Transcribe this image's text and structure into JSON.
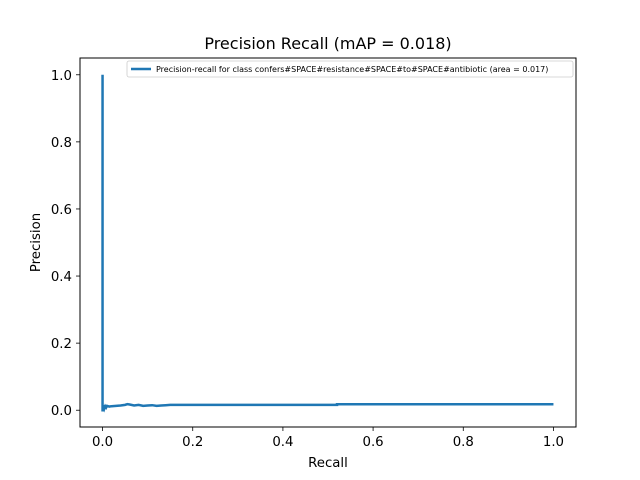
{
  "chart_data": {
    "type": "line",
    "title": "Precision Recall (mAP = 0.018)",
    "xlabel": "Recall",
    "ylabel": "Precision",
    "xlim": [
      -0.05,
      1.05
    ],
    "ylim": [
      -0.05,
      1.05
    ],
    "xticks": [
      "0.0",
      "0.2",
      "0.4",
      "0.6",
      "0.8",
      "1.0"
    ],
    "yticks": [
      "0.0",
      "0.2",
      "0.4",
      "0.6",
      "0.8",
      "1.0"
    ],
    "grid": false,
    "legend_position": "top-right",
    "series": [
      {
        "name": "Precision-recall for class confers#SPACE#resistance#SPACE#to#SPACE#antibiotic (area = 0.017)",
        "color": "#1f77b4",
        "x": [
          0.0,
          0.0,
          0.002,
          0.002,
          0.004,
          0.006,
          0.008,
          0.01,
          0.015,
          0.02,
          0.03,
          0.04,
          0.05,
          0.055,
          0.06,
          0.07,
          0.08,
          0.09,
          0.1,
          0.11,
          0.12,
          0.13,
          0.14,
          0.15,
          0.2,
          0.3,
          0.4,
          0.52,
          0.52,
          0.6,
          0.7,
          0.8,
          0.9,
          1.0
        ],
        "y": [
          1.0,
          0.0,
          0.0,
          0.015,
          0.005,
          0.012,
          0.008,
          0.013,
          0.011,
          0.012,
          0.013,
          0.014,
          0.016,
          0.018,
          0.017,
          0.014,
          0.016,
          0.013,
          0.014,
          0.015,
          0.013,
          0.014,
          0.015,
          0.016,
          0.016,
          0.016,
          0.016,
          0.016,
          0.018,
          0.018,
          0.018,
          0.018,
          0.018,
          0.018
        ]
      }
    ]
  }
}
